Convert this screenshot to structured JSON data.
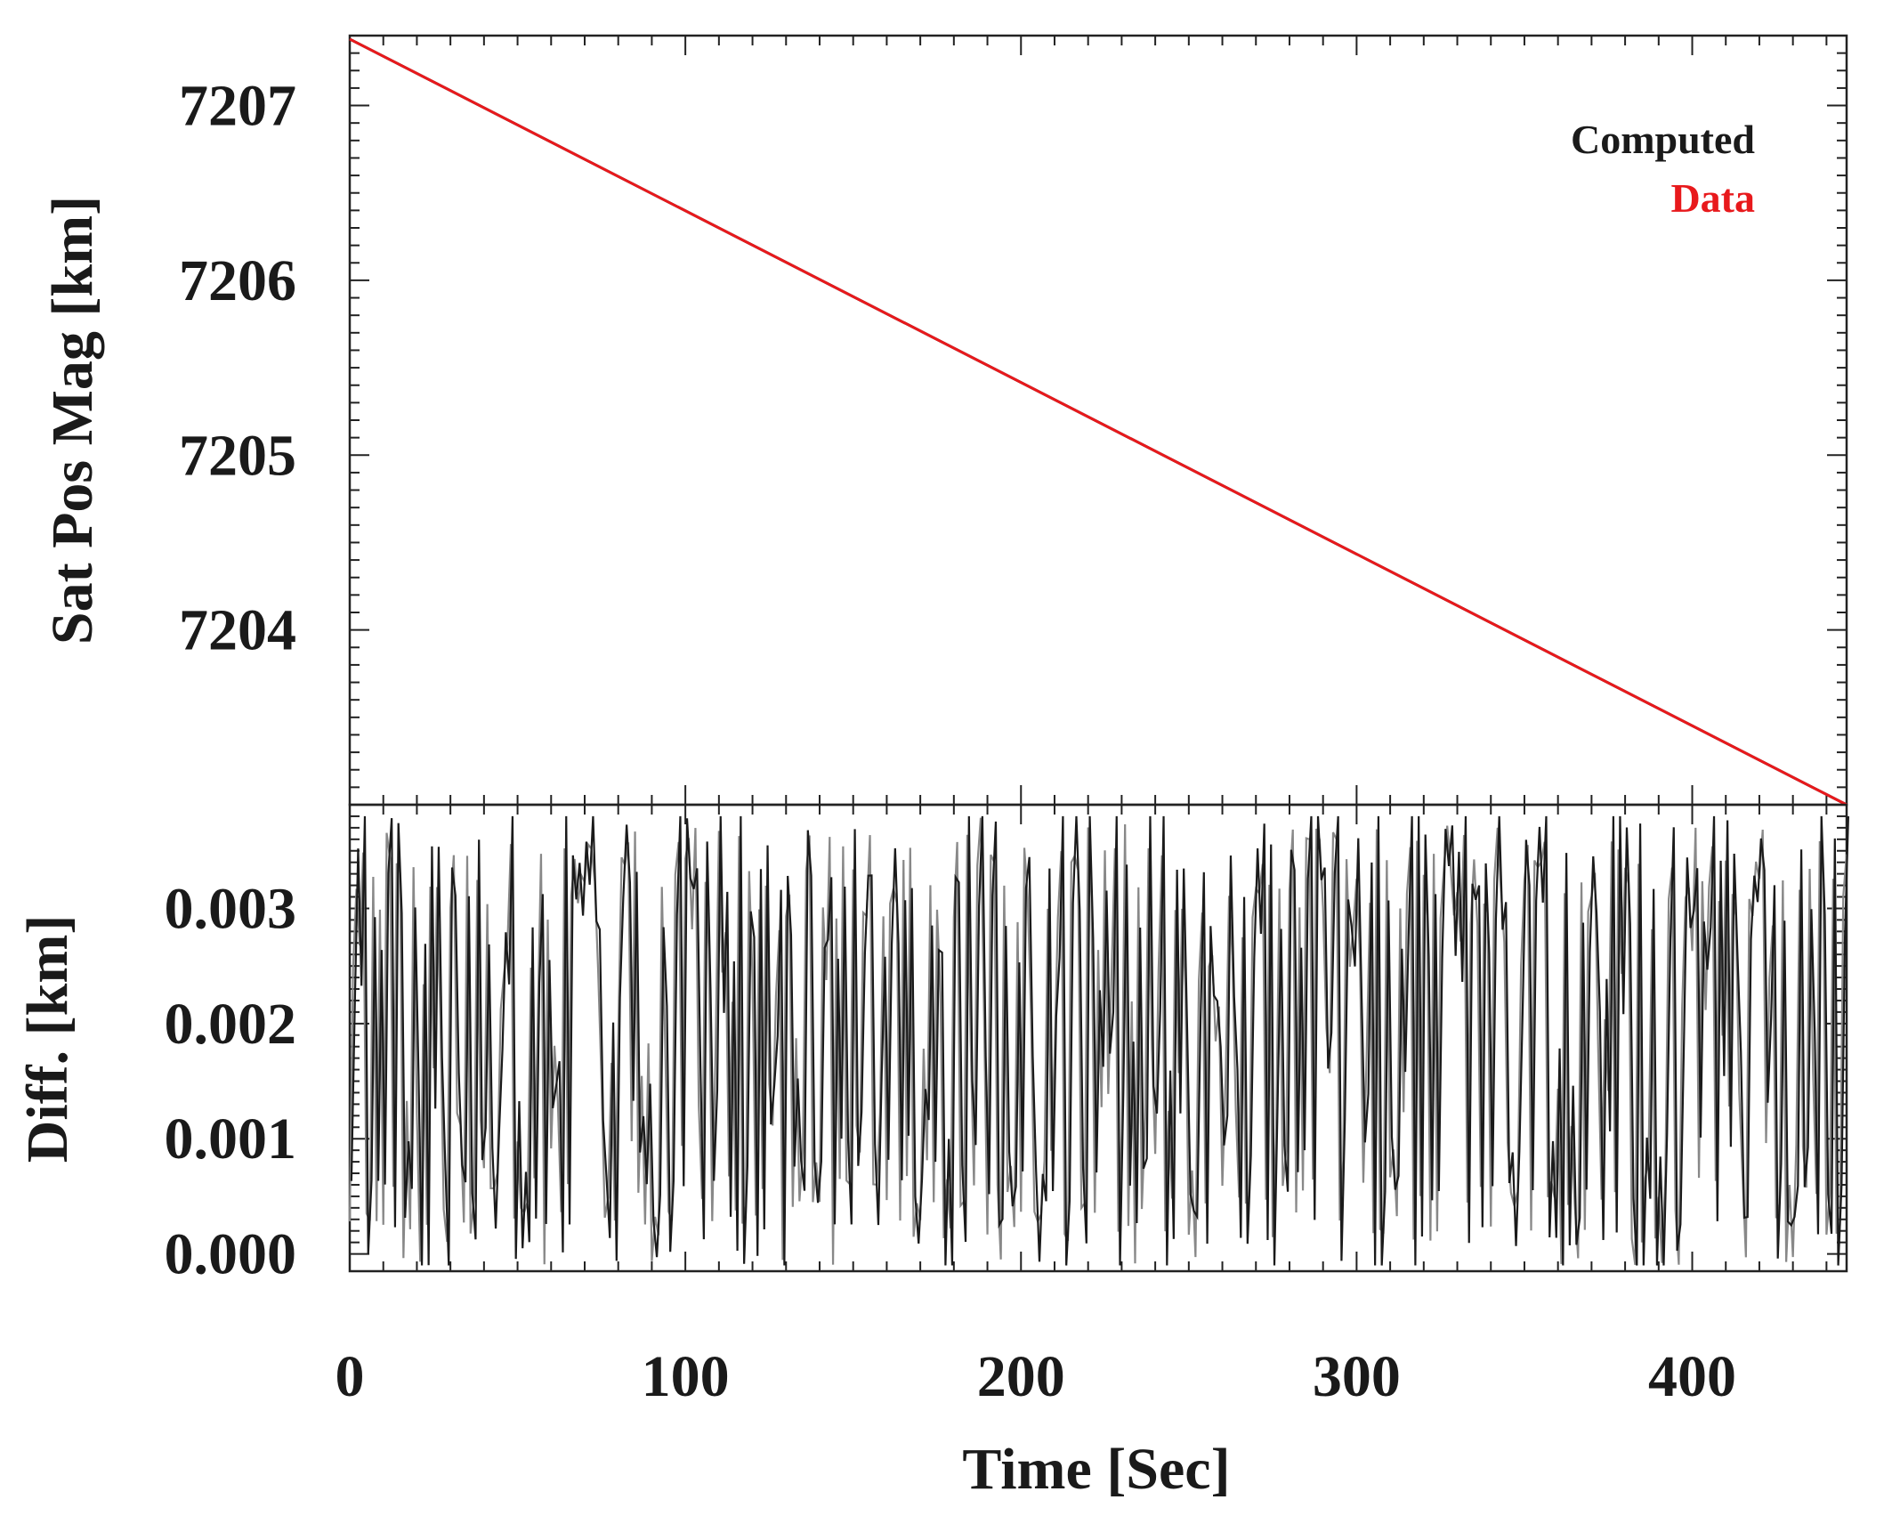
{
  "chart_data": [
    {
      "type": "line",
      "panel": "top",
      "ylabel": "Sat Pos Mag [km]",
      "xlim": [
        0,
        446
      ],
      "ylim": [
        7203.0,
        7207.4
      ],
      "yticks": [
        7204,
        7205,
        7206,
        7207
      ],
      "legend_position": "top-right",
      "legend": [
        {
          "label": "Computed",
          "color": "#1a1a1a"
        },
        {
          "label": "Data",
          "color": "#e8191c"
        }
      ],
      "series": [
        {
          "name": "Computed",
          "color": "#1a1a1a",
          "x": [
            0,
            446
          ],
          "y": [
            7207.38,
            7203.0
          ]
        },
        {
          "name": "Data",
          "color": "#e8191c",
          "x": [
            0,
            446
          ],
          "y": [
            7207.38,
            7203.0
          ]
        }
      ]
    },
    {
      "type": "line",
      "panel": "bottom",
      "ylabel": "Diff. [km]",
      "xlabel": "Time [Sec]",
      "xlim": [
        0,
        446
      ],
      "ylim": [
        -0.00015,
        0.0039
      ],
      "yticks": [
        0.0,
        0.001,
        0.002,
        0.003
      ],
      "ytick_labels": [
        "0.000",
        "0.001",
        "0.002",
        "0.003"
      ],
      "xticks": [
        0,
        100,
        200,
        300,
        400
      ],
      "xtick_labels": [
        "0",
        "100",
        "200",
        "300",
        "400"
      ],
      "series": [
        {
          "name": "Difference",
          "color": "#1a1a1a",
          "description_range": [
            0.0,
            0.0038
          ],
          "sample_interval_sec": 1
        }
      ]
    }
  ],
  "labels": {
    "top_ylabel": "Sat Pos Mag [km]",
    "bottom_ylabel": "Diff. [km]",
    "xlabel": "Time [Sec]",
    "legend_computed": "Computed",
    "legend_data": "Data"
  }
}
